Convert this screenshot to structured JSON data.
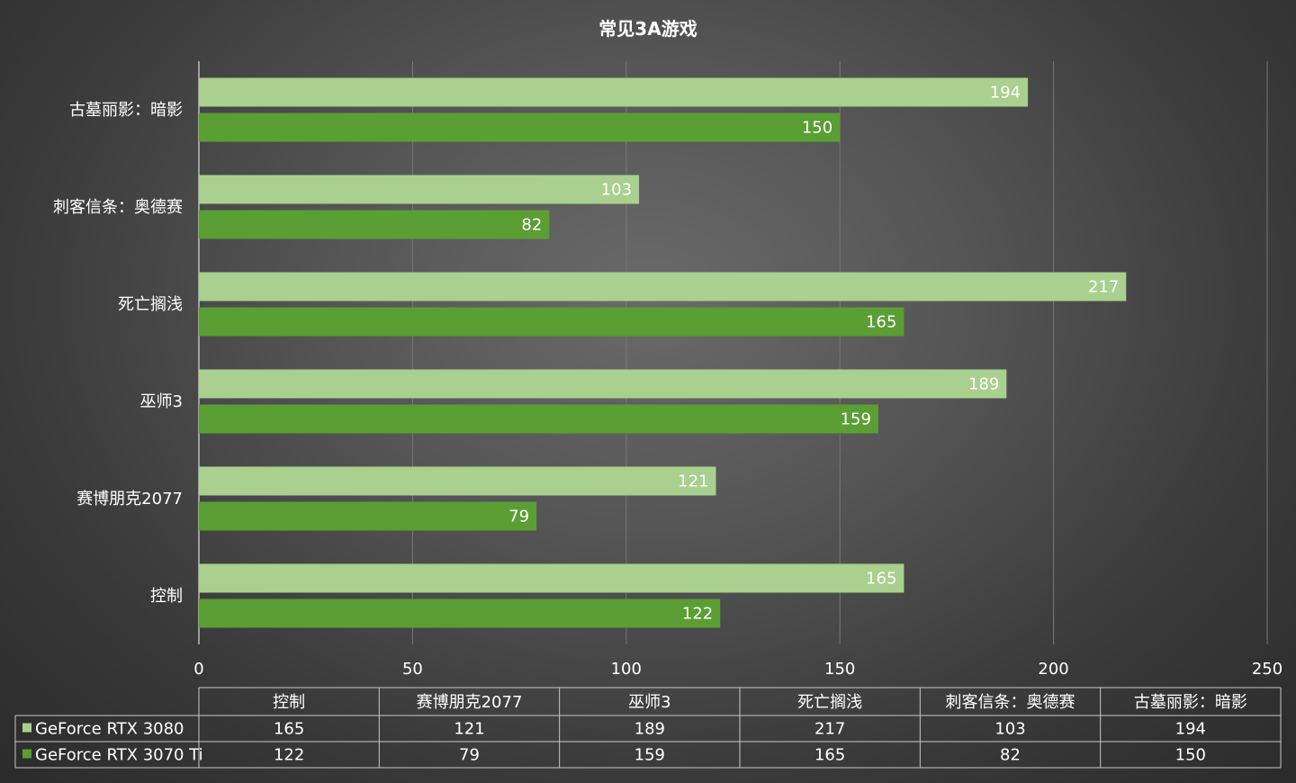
{
  "chart_data": {
    "type": "bar",
    "orientation": "horizontal",
    "title": "常见3A游戏",
    "categories": [
      "控制",
      "赛博朋克2077",
      "巫师3",
      "死亡搁浅",
      "刺客信条：奥德赛",
      "古墓丽影：暗影"
    ],
    "series": [
      {
        "name": "GeForce RTX 3080",
        "values": [
          165,
          121,
          189,
          217,
          103,
          194
        ],
        "color": "#a9d08e"
      },
      {
        "name": "GeForce RTX 3070 Ti",
        "values": [
          122,
          79,
          159,
          165,
          82,
          150
        ],
        "color": "#5a9e34"
      }
    ],
    "xlim": [
      0,
      250
    ],
    "x_ticks": [
      0,
      50,
      100,
      150,
      200,
      250
    ],
    "grid": true,
    "data_table": true
  }
}
